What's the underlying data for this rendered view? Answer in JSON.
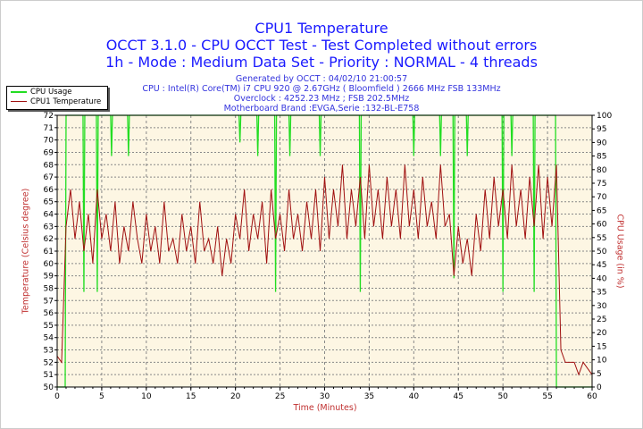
{
  "header": {
    "title": "CPU1 Temperature",
    "line2": "OCCT 3.1.0 - CPU OCCT Test - Test Completed without errors",
    "line3": "1h - Mode : Medium Data Set - Priority : NORMAL - 4 threads",
    "info": [
      "Generated by OCCT : 04/02/10 21:00:57",
      "CPU : Intel(R) Core(TM) i7 CPU 920 @ 2.67GHz ( Bloomfield ) 2666 MHz FSB 133MHz",
      "Overclock : 4252.23 MHz ; FSB 202.5MHz",
      "Motherboard Brand :EVGA,Serie :132-BL-E758"
    ]
  },
  "chart_data": {
    "type": "line",
    "title": "CPU1 Temperature",
    "xlabel": "Time (Minutes)",
    "ylabel": "Temperature (Celsius degree)",
    "y2label": "CPU Usage (in %)",
    "xlim": [
      0,
      60
    ],
    "ylim": [
      50,
      72
    ],
    "y2lim": [
      0,
      100
    ],
    "xticks": [
      0,
      5,
      10,
      15,
      20,
      25,
      30,
      35,
      40,
      45,
      50,
      55,
      60
    ],
    "yticks": [
      50,
      51,
      52,
      53,
      54,
      55,
      56,
      57,
      58,
      59,
      60,
      61,
      62,
      63,
      64,
      65,
      66,
      67,
      68,
      69,
      70,
      71,
      72
    ],
    "y2ticks": [
      0,
      5,
      10,
      15,
      20,
      25,
      30,
      35,
      40,
      45,
      50,
      55,
      60,
      65,
      70,
      75,
      80,
      85,
      90,
      95,
      100
    ],
    "grid": true,
    "legend_position": "top-left",
    "colors": {
      "cpu_usage": "#22dd22",
      "temperature": "#a01010",
      "background": "#fdf6e3",
      "title": "#1a1aff",
      "axis_label": "#c03030"
    },
    "series": [
      {
        "name": "CPU Usage",
        "axis": "right",
        "x": [
          0,
          0.9,
          1.0,
          2.9,
          3.0,
          3.1,
          4.4,
          4.5,
          4.6,
          6.0,
          6.1,
          6.2,
          7.9,
          8.0,
          8.1,
          20.4,
          20.5,
          20.6,
          22.4,
          22.5,
          22.6,
          24.4,
          24.5,
          24.6,
          26.0,
          26.1,
          26.2,
          29.4,
          29.5,
          29.6,
          33.9,
          34.0,
          34.1,
          39.9,
          40.0,
          40.1,
          42.9,
          43.0,
          43.1,
          44.4,
          44.5,
          44.6,
          45.9,
          46.0,
          46.1,
          49.9,
          50.0,
          50.1,
          50.9,
          51.0,
          51.1,
          53.4,
          53.5,
          53.6,
          55.9,
          56.0,
          60
        ],
        "values": [
          0,
          0,
          100,
          100,
          35,
          100,
          100,
          35,
          100,
          100,
          85,
          100,
          100,
          85,
          100,
          100,
          90,
          100,
          100,
          85,
          100,
          100,
          35,
          100,
          100,
          85,
          100,
          100,
          85,
          100,
          100,
          35,
          100,
          100,
          85,
          100,
          100,
          85,
          100,
          100,
          40,
          100,
          100,
          85,
          100,
          100,
          35,
          100,
          100,
          85,
          100,
          100,
          35,
          100,
          100,
          0,
          0
        ]
      },
      {
        "name": "CPU1 Temperature",
        "axis": "left",
        "x_start": 0,
        "x_step": 0.5,
        "values": [
          52.5,
          52,
          63,
          66,
          62,
          65,
          61,
          64,
          60,
          66,
          62,
          64,
          61,
          65,
          60,
          63,
          61,
          65,
          62,
          60,
          64,
          61,
          63,
          60,
          65,
          61,
          62,
          60,
          64,
          61,
          63,
          60,
          65,
          61,
          62,
          60,
          63,
          59,
          62,
          60,
          64,
          62,
          66,
          61,
          64,
          62,
          65,
          60,
          66,
          62,
          64,
          61,
          66,
          62,
          64,
          61,
          65,
          62,
          66,
          61,
          67,
          62,
          66,
          63,
          68,
          62,
          66,
          63,
          67,
          62,
          68,
          63,
          66,
          62,
          67,
          63,
          66,
          62,
          68,
          63,
          66,
          62,
          67,
          63,
          65,
          62,
          68,
          63,
          64,
          59,
          63,
          60,
          62,
          59,
          64,
          61,
          66,
          62,
          67,
          63,
          66,
          62,
          68,
          63,
          66,
          62,
          67,
          63,
          68,
          62,
          67,
          63,
          68,
          53,
          52,
          52,
          52,
          51,
          52,
          51.5,
          51
        ]
      }
    ]
  }
}
